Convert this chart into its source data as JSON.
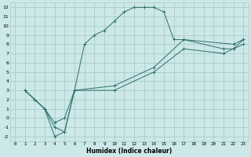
{
  "title": "",
  "xlabel": "Humidex (Indice chaleur)",
  "bg_color": "#cce8e8",
  "grid_color": "#aacccc",
  "line_color": "#2d6e68",
  "xlim": [
    -0.5,
    23.5
  ],
  "ylim": [
    -2.5,
    12.5
  ],
  "xticks": [
    0,
    1,
    2,
    3,
    4,
    5,
    6,
    7,
    8,
    9,
    10,
    11,
    12,
    13,
    14,
    15,
    16,
    17,
    18,
    19,
    20,
    21,
    22,
    23
  ],
  "yticks": [
    -2,
    -1,
    0,
    1,
    2,
    3,
    4,
    5,
    6,
    7,
    8,
    9,
    10,
    11,
    12
  ],
  "line1_x": [
    1,
    2,
    3,
    4,
    5,
    6,
    7,
    8,
    9,
    10,
    11,
    12,
    13,
    14,
    15,
    16,
    17,
    22,
    23
  ],
  "line1_y": [
    3,
    2,
    1,
    -2,
    -1.5,
    3,
    8,
    9,
    9.5,
    10.5,
    11.5,
    12,
    12,
    12,
    11.5,
    8.5,
    8.5,
    8,
    8.5
  ],
  "line2_x": [
    1,
    2,
    3,
    4,
    5,
    6,
    10,
    14,
    17,
    21,
    22,
    23
  ],
  "line2_y": [
    3,
    2,
    1,
    -1,
    -1.5,
    3,
    3.5,
    5.5,
    8.5,
    7.5,
    7.5,
    8.5
  ],
  "line3_x": [
    1,
    2,
    3,
    4,
    5,
    6,
    10,
    14,
    17,
    21,
    22,
    23
  ],
  "line3_y": [
    3,
    2,
    1,
    -0.5,
    0,
    3,
    3,
    5,
    7.5,
    7,
    7.5,
    8
  ]
}
